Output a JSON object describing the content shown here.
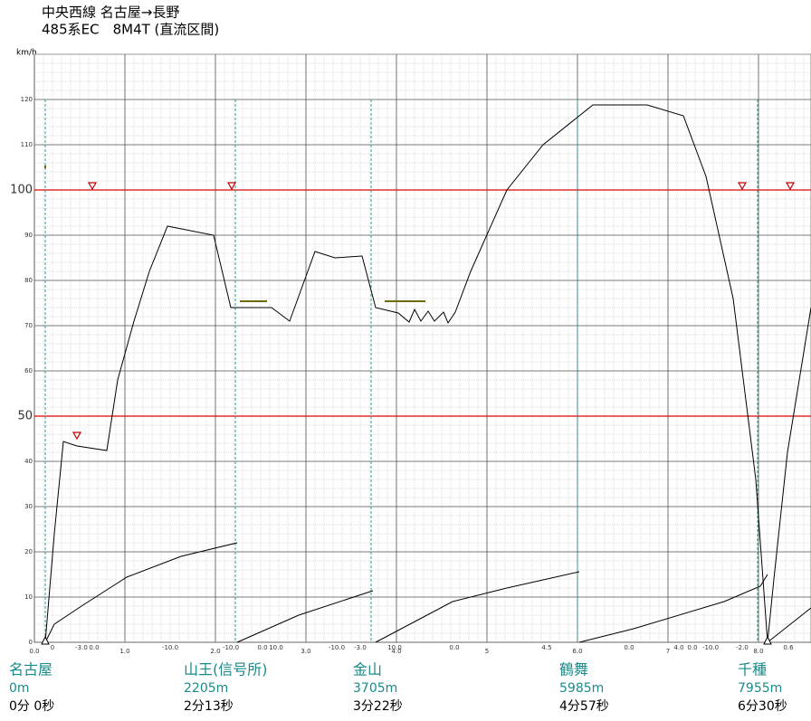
{
  "chart_data": {
    "type": "line",
    "title": "中央西線 名古屋→長野",
    "subtitle": "485系EC　8M4T (直流区間)",
    "y_label": "km/h",
    "xlim": [
      -0.38,
      8.58
    ],
    "ylim": [
      0,
      130
    ],
    "xticks": [
      {
        "value": 0,
        "label": "0.0"
      },
      {
        "value": 1,
        "label": "1.0"
      },
      {
        "value": 2,
        "label": "2.0"
      },
      {
        "value": 3,
        "label": "3.0"
      },
      {
        "value": 4,
        "label": "4.0"
      },
      5.0,
      {
        "value": 6,
        "label": "6.0"
      },
      7.0,
      {
        "value": 8,
        "label": "8.0"
      }
    ],
    "yticks": [
      0,
      10,
      20,
      30,
      40,
      50,
      60,
      70,
      80,
      90,
      100,
      110,
      120
    ],
    "red_lines": [
      50,
      100
    ],
    "grid": true,
    "series": [
      {
        "color": "#000000",
        "x": [
          0.12,
          0.22,
          0.32,
          0.47,
          0.8,
          0.92,
          1.1,
          1.27,
          1.47,
          1.98,
          2.17,
          2.62,
          2.82,
          3.1,
          3.32,
          3.62,
          3.77,
          4.02,
          4.14,
          4.2,
          4.27,
          4.35,
          4.42,
          4.52,
          4.57,
          4.65,
          4.82,
          5.22,
          5.62,
          6.17,
          6.77,
          7.17,
          7.42,
          7.72,
          7.97,
          8.1,
          8.17,
          8.32,
          8.58
        ],
        "values": [
          0,
          24,
          44.4,
          43.4,
          42.4,
          58,
          71,
          82,
          92,
          90,
          74,
          74,
          71,
          86.4,
          85,
          85.4,
          74,
          72.8,
          70.8,
          73.6,
          71,
          73.2,
          71,
          73,
          70.6,
          73,
          82,
          100,
          110,
          118.8,
          118.8,
          116.4,
          103,
          76,
          36,
          0,
          14,
          42,
          74
        ]
      },
      {
        "color": "#000000",
        "x": [
          0.12,
          0.22,
          0.52,
          1.02,
          1.62,
          2.24,
          null,
          2.24,
          2.92,
          3.74,
          null,
          3.77,
          4.62,
          5.22,
          6.02,
          null,
          6.02,
          6.62,
          7.62,
          8.02,
          8.1,
          null,
          8.1,
          8.58
        ],
        "values": [
          0,
          4,
          8,
          14.4,
          19,
          22,
          null,
          0,
          6,
          11.4,
          null,
          0,
          9,
          12,
          15.6,
          null,
          0,
          3,
          9,
          12.4,
          15,
          null,
          0,
          7.6
        ]
      }
    ],
    "stations": [
      {
        "name": "名古屋",
        "distance": "0m",
        "time": "0分 0秒",
        "km": 0.12
      },
      {
        "name": "山王(信号所)",
        "distance": "2205m",
        "time": "2分13秒",
        "km": 2.22
      },
      {
        "name": "金山",
        "distance": "3705m",
        "time": "3分22秒",
        "km": 3.72
      },
      {
        "name": "鶴舞",
        "distance": "5985m",
        "time": "4分57秒",
        "km": 6.0
      },
      {
        "name": "千種",
        "distance": "7955m",
        "time": "6分30秒",
        "km": 7.99
      }
    ],
    "gradients": [
      "0",
      "-3.0",
      "0.0",
      "-10.0",
      "-10.0",
      "0.0",
      "10.0",
      "-10.0",
      "-3.0",
      "10.0",
      "0.0",
      "4.5",
      "0.0",
      "4.0",
      "0.0",
      "-10.0",
      "-2.0",
      "0.6"
    ]
  }
}
